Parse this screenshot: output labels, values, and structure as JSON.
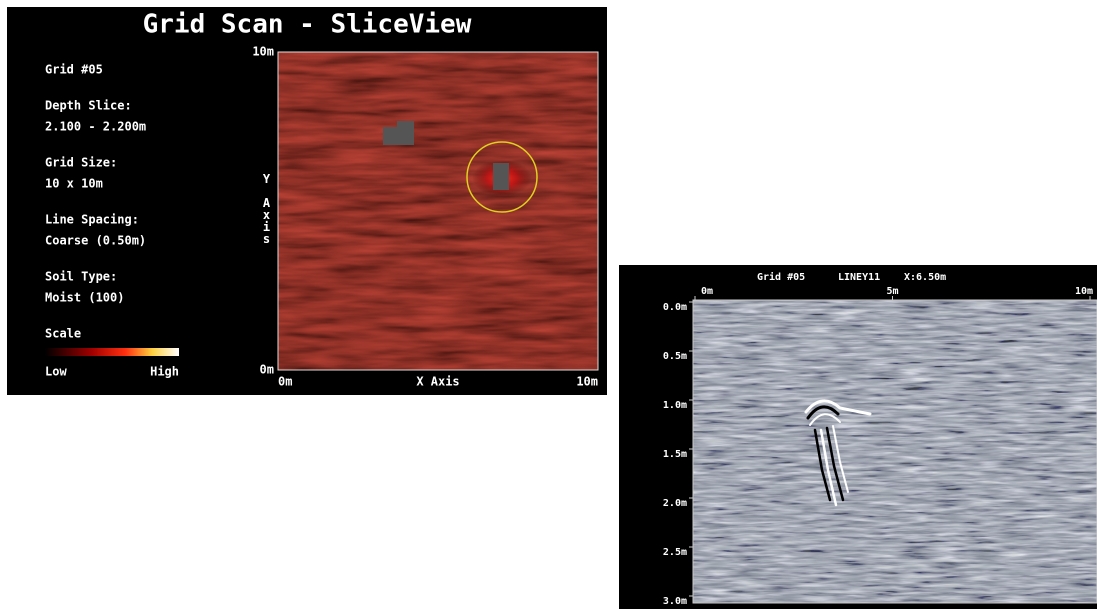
{
  "left_panel": {
    "title": "Grid Scan - SliceView",
    "info": [
      [
        "Grid #05"
      ],
      [
        "Depth Slice:",
        "2.100 - 2.200m"
      ],
      [
        "Grid Size:",
        "10 x 10m"
      ],
      [
        "Line Spacing:",
        "Coarse (0.50m)"
      ],
      [
        "Soil Type:",
        "Moist (100)"
      ]
    ],
    "scale": {
      "title": "Scale",
      "low": "Low",
      "high": "High"
    },
    "map": {
      "x_axis_label": "X Axis",
      "y_axis_label": "Y Axis",
      "xticks": [
        {
          "value": 0,
          "label": "0m"
        },
        {
          "value": 10,
          "label": "10m"
        }
      ],
      "yticks": [
        {
          "value": 0,
          "label": "0m"
        },
        {
          "value": 10,
          "label": "10m"
        }
      ]
    }
  },
  "right_panel": {
    "header": [
      "Grid #05",
      "LINEY11",
      "X:6.50m"
    ],
    "xticks": [
      {
        "value": 0,
        "label": "0m"
      },
      {
        "value": 5,
        "label": "5m"
      },
      {
        "value": 10,
        "label": "10m"
      }
    ],
    "yticks": [
      {
        "value": 0,
        "label": "0.0m"
      },
      {
        "value": 0.5,
        "label": "0.5m"
      },
      {
        "value": 1,
        "label": "1.0m"
      },
      {
        "value": 1.5,
        "label": "1.5m"
      },
      {
        "value": 2,
        "label": "2.0m"
      },
      {
        "value": 2.5,
        "label": "2.5m"
      },
      {
        "value": 3,
        "label": "3.0m"
      }
    ]
  }
}
